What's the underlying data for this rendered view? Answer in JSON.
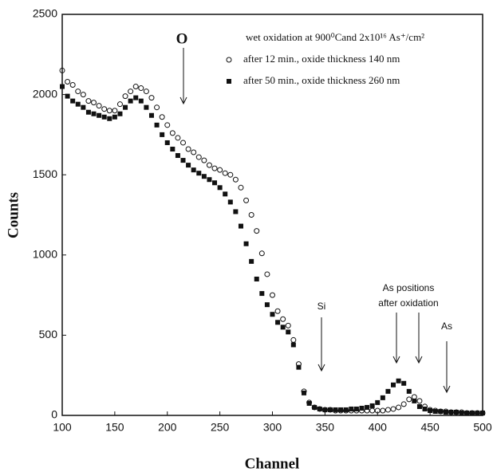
{
  "chart_data": {
    "type": "scatter",
    "title": "wet oxidation at  900⁰Cand  2x10¹⁶ As⁺/cm²",
    "xlabel": "Channel",
    "ylabel": "Counts",
    "x": [
      100,
      105,
      110,
      115,
      120,
      125,
      130,
      135,
      140,
      145,
      150,
      155,
      160,
      165,
      170,
      175,
      180,
      185,
      190,
      195,
      200,
      205,
      210,
      215,
      220,
      225,
      230,
      235,
      240,
      245,
      250,
      255,
      260,
      265,
      270,
      275,
      280,
      285,
      290,
      295,
      300,
      305,
      310,
      315,
      320,
      325,
      330,
      335,
      340,
      345,
      350,
      355,
      360,
      365,
      370,
      375,
      380,
      385,
      390,
      395,
      400,
      405,
      410,
      415,
      420,
      425,
      430,
      435,
      440,
      445,
      450,
      455,
      460,
      465,
      470,
      475,
      480,
      485,
      490,
      495,
      500
    ],
    "series": [
      {
        "name": "after  12 min., oxide thickness  140 nm",
        "marker": "circle",
        "color": "#111111",
        "values": [
          2150,
          2080,
          2060,
          2020,
          2000,
          1960,
          1950,
          1930,
          1910,
          1900,
          1900,
          1940,
          1990,
          2020,
          2050,
          2040,
          2020,
          1980,
          1920,
          1860,
          1810,
          1760,
          1730,
          1700,
          1660,
          1640,
          1610,
          1590,
          1560,
          1540,
          1530,
          1510,
          1500,
          1470,
          1420,
          1340,
          1250,
          1150,
          1010,
          880,
          750,
          650,
          600,
          560,
          470,
          320,
          150,
          80,
          50,
          40,
          35,
          35,
          30,
          30,
          30,
          30,
          30,
          30,
          30,
          30,
          30,
          30,
          35,
          40,
          50,
          70,
          100,
          115,
          90,
          55,
          35,
          30,
          25,
          25,
          20,
          20,
          20,
          15,
          15,
          15,
          15
        ]
      },
      {
        "name": "after  50 min., oxide thickness  260 nm",
        "marker": "square",
        "color": "#111111",
        "values": [
          2050,
          1990,
          1960,
          1940,
          1920,
          1890,
          1880,
          1870,
          1860,
          1850,
          1860,
          1880,
          1920,
          1960,
          1980,
          1960,
          1920,
          1870,
          1810,
          1750,
          1700,
          1660,
          1620,
          1590,
          1560,
          1530,
          1510,
          1490,
          1470,
          1450,
          1420,
          1380,
          1330,
          1270,
          1180,
          1070,
          960,
          850,
          760,
          690,
          630,
          580,
          550,
          520,
          440,
          300,
          140,
          75,
          50,
          40,
          35,
          35,
          35,
          35,
          35,
          40,
          40,
          45,
          50,
          60,
          80,
          110,
          150,
          190,
          215,
          200,
          150,
          90,
          55,
          40,
          30,
          25,
          25,
          20,
          20,
          20,
          15,
          15,
          15,
          15,
          15
        ]
      }
    ],
    "xlim": [
      100,
      500
    ],
    "ylim": [
      0,
      2500
    ],
    "xticks": [
      100,
      150,
      200,
      250,
      300,
      350,
      400,
      450,
      500
    ],
    "yticks": [
      0,
      500,
      1000,
      1500,
      2000,
      2500
    ],
    "annotations": [
      "O",
      "Si",
      "As positions",
      "after oxidation",
      "As"
    ]
  }
}
